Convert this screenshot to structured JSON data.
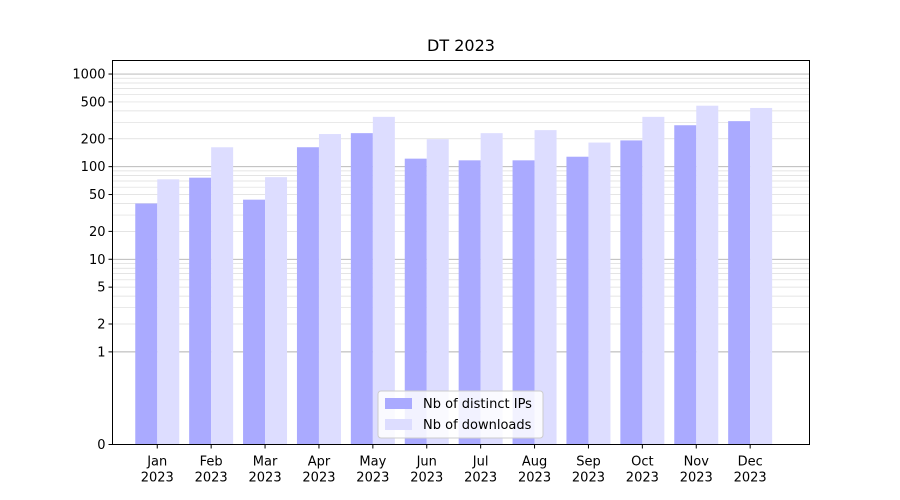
{
  "chart_data": {
    "type": "bar",
    "title": "DT 2023",
    "xlabel": "",
    "ylabel": "",
    "yscale": "symlog",
    "ylim": [
      0,
      1400
    ],
    "yticks": [
      0,
      1,
      2,
      5,
      10,
      20,
      50,
      100,
      200,
      500,
      1000
    ],
    "grid": true,
    "legend_position": "bottom-center",
    "categories": [
      {
        "month": "Jan",
        "year": "2023"
      },
      {
        "month": "Feb",
        "year": "2023"
      },
      {
        "month": "Mar",
        "year": "2023"
      },
      {
        "month": "Apr",
        "year": "2023"
      },
      {
        "month": "May",
        "year": "2023"
      },
      {
        "month": "Jun",
        "year": "2023"
      },
      {
        "month": "Jul",
        "year": "2023"
      },
      {
        "month": "Aug",
        "year": "2023"
      },
      {
        "month": "Sep",
        "year": "2023"
      },
      {
        "month": "Oct",
        "year": "2023"
      },
      {
        "month": "Nov",
        "year": "2023"
      },
      {
        "month": "Dec",
        "year": "2023"
      }
    ],
    "series": [
      {
        "name": "Nb of distinct IPs",
        "color": "#aaaaff",
        "values": [
          40,
          76,
          44,
          162,
          230,
          122,
          117,
          117,
          128,
          192,
          280,
          310
        ]
      },
      {
        "name": "Nb of downloads",
        "color": "#ddddff",
        "values": [
          73,
          162,
          77,
          225,
          345,
          198,
          230,
          248,
          182,
          345,
          455,
          430
        ]
      }
    ]
  }
}
